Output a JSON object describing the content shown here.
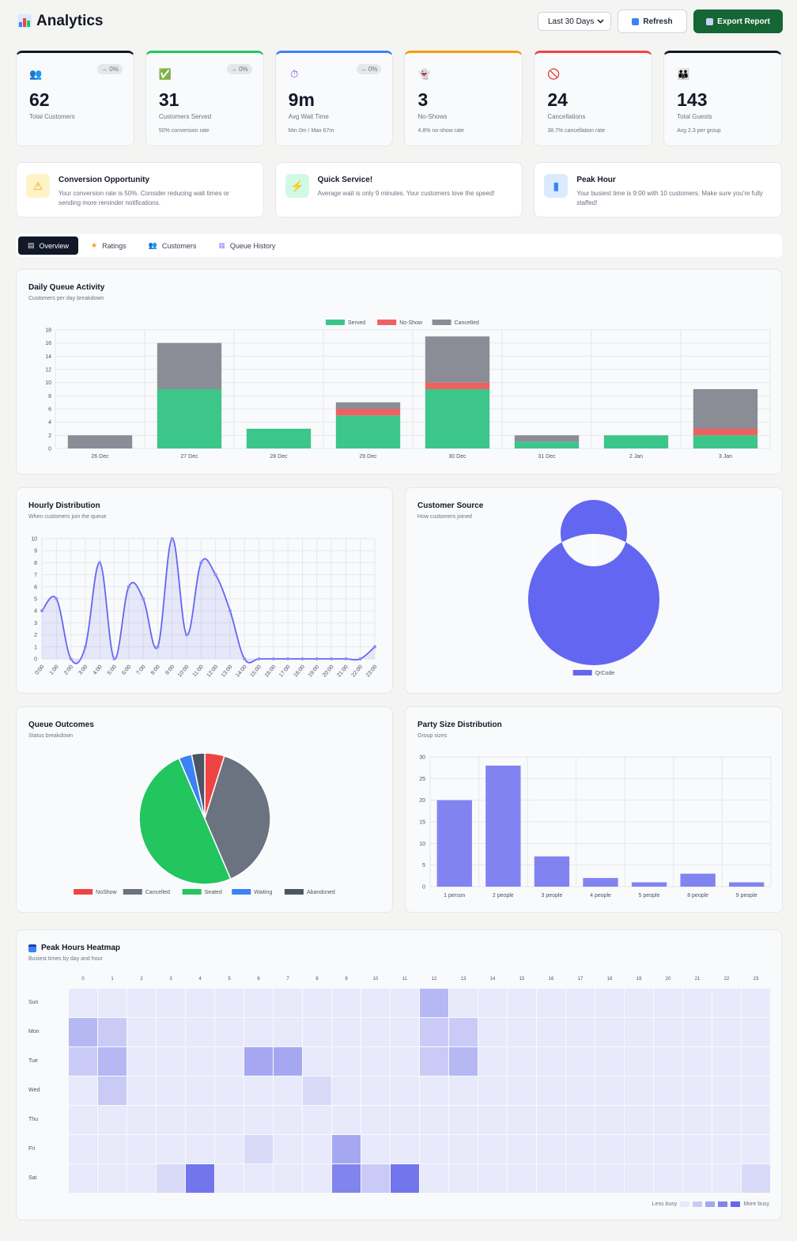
{
  "header": {
    "title": "Analytics",
    "range_value": "Last 30 Days",
    "refresh_label": "Refresh",
    "export_label": "Export Report"
  },
  "stats": [
    {
      "icon": "people-icon",
      "value": "62",
      "label": "Total Customers",
      "delta": "→ 0%",
      "sub": "",
      "color": "#111827"
    },
    {
      "icon": "check-icon",
      "value": "31",
      "label": "Customers Served",
      "delta": "→ 0%",
      "sub": "50% conversion rate",
      "color": "#22c55e"
    },
    {
      "icon": "stopwatch-icon",
      "value": "9m",
      "label": "Avg Wait Time",
      "delta": "→ 0%",
      "sub": "Min 0m / Max 67m",
      "color": "#3b82f6"
    },
    {
      "icon": "ghost-icon",
      "value": "3",
      "label": "No-Shows",
      "delta": "",
      "sub": "4.8% no-show rate",
      "color": "#f59e0b"
    },
    {
      "icon": "prohibited-icon",
      "value": "24",
      "label": "Cancellations",
      "delta": "",
      "sub": "38.7% cancellation rate",
      "color": "#ef4444"
    },
    {
      "icon": "group-icon",
      "value": "143",
      "label": "Total Guests",
      "delta": "",
      "sub": "Avg 2.3 per group",
      "color": "#111827"
    }
  ],
  "insights": [
    {
      "icon": "warning-icon",
      "title": "Conversion Opportunity",
      "text": "Your conversion rate is 50%. Consider reducing wait times or sending more reminder notifications.",
      "bg": "#fef3c7"
    },
    {
      "icon": "lightning-icon",
      "title": "Quick Service!",
      "text": "Average wait is only 9 minutes. Your customers love the speed!",
      "bg": "#d1fae5"
    },
    {
      "icon": "chart-icon",
      "title": "Peak Hour",
      "text": "Your busiest time is 9:00 with 10 customers. Make sure you're fully staffed!",
      "bg": "#dbeafe"
    }
  ],
  "tabs": [
    {
      "label": "Overview",
      "icon": "document-icon"
    },
    {
      "label": "Ratings",
      "icon": "star-icon"
    },
    {
      "label": "Customers",
      "icon": "people-icon"
    },
    {
      "label": "Queue History",
      "icon": "clipboard-icon"
    }
  ],
  "colors": {
    "served": "#3cc68a",
    "noshow": "#ef6161",
    "cancelled": "#8a8d96",
    "primary": "#6366f1"
  },
  "chart_data": [
    {
      "id": "daily",
      "type": "bar",
      "title": "Daily Queue Activity",
      "subtitle": "Customers per day breakdown",
      "stacked": true,
      "categories": [
        "26 Dec",
        "27 Dec",
        "28 Dec",
        "29 Dec",
        "30 Dec",
        "31 Dec",
        "2 Jan",
        "3 Jan"
      ],
      "series": [
        {
          "name": "Served",
          "values": [
            0,
            9,
            3,
            5,
            9,
            1,
            2,
            2
          ]
        },
        {
          "name": "No-Show",
          "values": [
            0,
            0,
            0,
            1,
            1,
            0,
            0,
            1
          ]
        },
        {
          "name": "Cancelled",
          "values": [
            2,
            7,
            0,
            1,
            7,
            1,
            0,
            6
          ]
        }
      ],
      "ylim": [
        0,
        18
      ],
      "yticks": [
        0,
        2,
        4,
        6,
        8,
        10,
        12,
        14,
        16,
        18
      ],
      "legend": "top"
    },
    {
      "id": "hourly",
      "type": "area",
      "title": "Hourly Distribution",
      "subtitle": "When customers join the queue",
      "categories": [
        "0:00",
        "1:00",
        "2:00",
        "3:00",
        "4:00",
        "5:00",
        "6:00",
        "7:00",
        "8:00",
        "9:00",
        "10:00",
        "11:00",
        "12:00",
        "13:00",
        "14:00",
        "15:00",
        "16:00",
        "17:00",
        "18:00",
        "19:00",
        "20:00",
        "21:00",
        "22:00",
        "23:00"
      ],
      "values": [
        4,
        5,
        0,
        1,
        8,
        0,
        6,
        5,
        1,
        10,
        2,
        8,
        7,
        4,
        0,
        0,
        0,
        0,
        0,
        0,
        0,
        0,
        0,
        1
      ],
      "ylim": [
        0,
        10
      ],
      "yticks": [
        0,
        1,
        2,
        3,
        4,
        5,
        6,
        7,
        8,
        9,
        10
      ]
    },
    {
      "id": "source",
      "type": "pie",
      "donut": true,
      "title": "Customer Source",
      "subtitle": "How customers joined",
      "labels": [
        "QrCode"
      ],
      "values": [
        62
      ],
      "colors": [
        "#6366f1"
      ],
      "legend": "bottom"
    },
    {
      "id": "outcomes",
      "type": "pie",
      "title": "Queue Outcomes",
      "subtitle": "Status breakdown",
      "labels": [
        "NoShow",
        "Cancelled",
        "Seated",
        "Waiting",
        "Abandoned"
      ],
      "values": [
        3,
        24,
        31,
        2,
        2
      ],
      "colors": [
        "#ef4444",
        "#6b7280",
        "#22c55e",
        "#3b82f6",
        "#4b5563"
      ],
      "legend": "bottom"
    },
    {
      "id": "party",
      "type": "bar",
      "title": "Party Size Distribution",
      "subtitle": "Group sizes",
      "categories": [
        "1 person",
        "2 people",
        "3 people",
        "4 people",
        "5 people",
        "8 people",
        "9 people"
      ],
      "values": [
        20,
        28,
        7,
        2,
        1,
        3,
        1
      ],
      "ylim": [
        0,
        30
      ],
      "yticks": [
        0,
        5,
        10,
        15,
        20,
        25,
        30
      ]
    },
    {
      "id": "heatmap",
      "type": "heatmap",
      "title": "Peak Hours Heatmap",
      "subtitle": "Busiest times by day and hour",
      "days": [
        "Sun",
        "Mon",
        "Tue",
        "Wed",
        "Thu",
        "Fri",
        "Sat"
      ],
      "hours": [
        "0",
        "1",
        "2",
        "3",
        "4",
        "5",
        "6",
        "7",
        "8",
        "9",
        "10",
        "11",
        "12",
        "13",
        "14",
        "15",
        "16",
        "17",
        "18",
        "19",
        "20",
        "21",
        "22",
        "23"
      ],
      "values": [
        [
          0,
          0,
          0,
          0,
          0,
          0,
          0,
          0,
          0,
          0,
          0,
          0,
          3,
          0,
          0,
          0,
          0,
          0,
          0,
          0,
          0,
          0,
          0,
          0
        ],
        [
          3,
          2,
          0,
          0,
          0,
          0,
          0,
          0,
          0,
          0,
          0,
          0,
          2,
          2,
          0,
          0,
          0,
          0,
          0,
          0,
          0,
          0,
          0,
          0
        ],
        [
          2,
          3,
          0,
          0,
          0,
          0,
          4,
          4,
          0,
          0,
          0,
          0,
          2,
          3,
          0,
          0,
          0,
          0,
          0,
          0,
          0,
          0,
          0,
          0
        ],
        [
          0,
          2,
          0,
          0,
          0,
          0,
          0,
          0,
          1,
          0,
          0,
          0,
          0,
          0,
          0,
          0,
          0,
          0,
          0,
          0,
          0,
          0,
          0,
          0
        ],
        [
          0,
          0,
          0,
          0,
          0,
          0,
          0,
          0,
          0,
          0,
          0,
          0,
          0,
          0,
          0,
          0,
          0,
          0,
          0,
          0,
          0,
          0,
          0,
          0
        ],
        [
          0,
          0,
          0,
          0,
          0,
          0,
          1,
          0,
          0,
          4,
          0,
          0,
          0,
          0,
          0,
          0,
          0,
          0,
          0,
          0,
          0,
          0,
          0,
          0
        ],
        [
          0,
          0,
          0,
          1,
          7,
          0,
          0,
          0,
          0,
          6,
          2,
          7,
          0,
          0,
          0,
          0,
          0,
          0,
          0,
          0,
          0,
          0,
          0,
          1
        ]
      ],
      "max": 7,
      "legend_less": "Less busy",
      "legend_more": "More busy"
    }
  ]
}
